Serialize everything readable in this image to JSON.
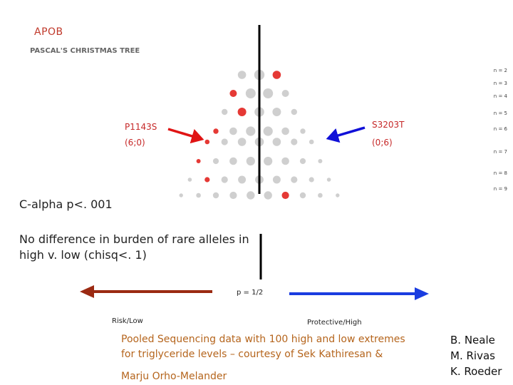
{
  "title": "APOB",
  "subtitle": "PASCAL'S CHRISTMAS TREE",
  "row_labels": [
    "n = 2",
    "n = 3",
    "n = 4",
    "n = 5",
    "n = 6",
    "n = 7",
    "n = 8",
    "n = 9"
  ],
  "variant_left": {
    "name": "P1143S",
    "counts": "(6;0)"
  },
  "variant_right": {
    "name": "S3203T",
    "counts": "(0;6)"
  },
  "stat_calpha": "C-alpha p<. 001",
  "stat_burden": "No difference in burden of rare alleles in high v. low (chisq<. 1)",
  "axis_midpoint": "p = 1/2",
  "axis_left_label": "Risk/Low",
  "axis_right_label": "Protective/High",
  "pooled_note": "Pooled Sequencing data with 100 high and low extremes for triglyceride levels – courtesy of Sek Kathiresan &",
  "pooled_note_author": "Marju Orho-Melander",
  "credits": [
    "B. Neale",
    "M. Rivas",
    "K. Roeder"
  ],
  "colors": {
    "gray_dot": "#cfcfcf",
    "red_dot": "#e53935",
    "center_line": "#000000",
    "risk_arrow": "#9b2a12",
    "protective_arrow": "#1a3de0",
    "left_pointer": "#e01414",
    "right_pointer": "#1010d8"
  },
  "tree_rows": [
    {
      "n": 2,
      "red": [
        2
      ]
    },
    {
      "n": 3,
      "red": [
        0
      ]
    },
    {
      "n": 4,
      "red": [
        1
      ]
    },
    {
      "n": 5,
      "red": [
        0
      ]
    },
    {
      "n": 6,
      "red": [
        0
      ]
    },
    {
      "n": 7,
      "red": [
        0
      ]
    },
    {
      "n": 8,
      "red": [
        1
      ]
    },
    {
      "n": 9,
      "red": [
        6
      ]
    }
  ]
}
